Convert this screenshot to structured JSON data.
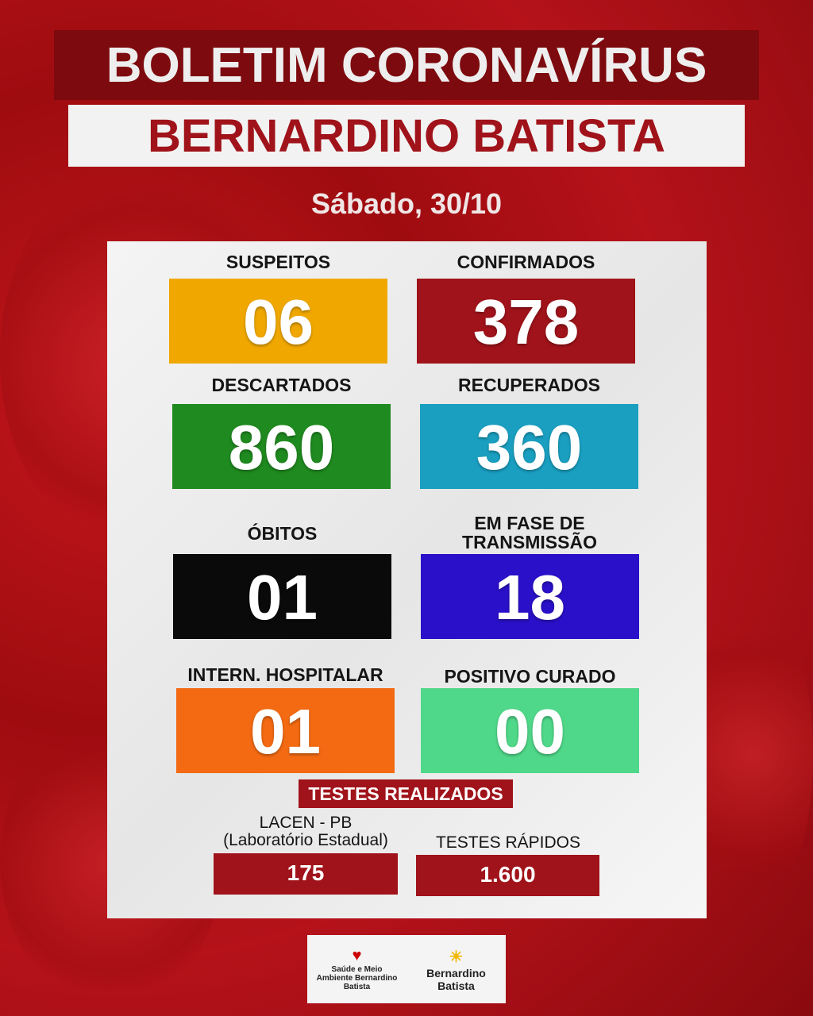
{
  "header": {
    "title": "BOLETIM CORONAVÍRUS",
    "city": "BERNARDINO BATISTA",
    "date": "Sábado, 30/10"
  },
  "stats": [
    {
      "label": "SUSPEITOS",
      "value": "06",
      "color": "#f0a800"
    },
    {
      "label": "CONFIRMADOS",
      "value": "378",
      "color": "#a0131a"
    },
    {
      "label": "DESCARTADOS",
      "value": "860",
      "color": "#1f8a1f"
    },
    {
      "label": "RECUPERADOS",
      "value": "360",
      "color": "#1a9fc0"
    },
    {
      "label": "ÓBITOS",
      "value": "01",
      "color": "#0a0a0a"
    },
    {
      "label": "EM FASE DE TRANSMISSÃO",
      "value": "18",
      "color": "#2a10c8"
    },
    {
      "label": "INTERN. HOSPITALAR",
      "value": "01",
      "color": "#f36a12"
    },
    {
      "label": "POSITIVO CURADO",
      "value": "00",
      "color": "#4fd889"
    }
  ],
  "tests": {
    "title": "TESTES REALIZADOS",
    "lacen_label": "LACEN - PB",
    "lacen_sub": "(Laboratório Estadual)",
    "lacen_value": "175",
    "rapid_label": "TESTES RÁPIDOS",
    "rapid_value": "1.600"
  },
  "logos": {
    "left": "Saúde e Meio Ambiente Bernardino Batista",
    "right": "Bernardino Batista"
  }
}
